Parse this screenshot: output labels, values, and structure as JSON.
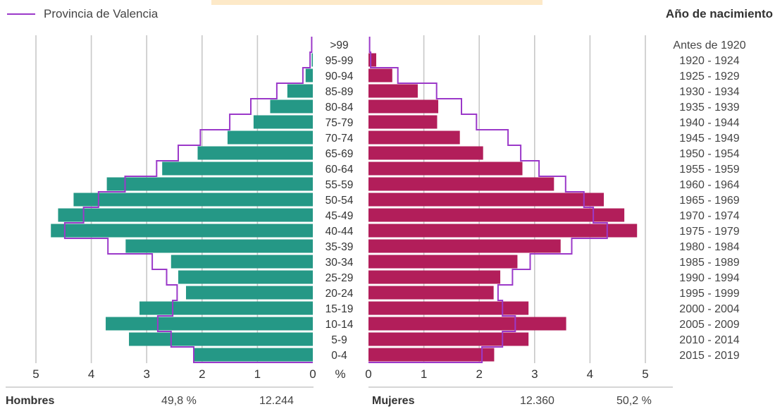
{
  "legend": {
    "label": "Provincia de Valencia",
    "color": "#9b39c9"
  },
  "year_axis_title": "Año de nacimiento",
  "summary": {
    "men_label": "Hombres",
    "men_pct": "49,8 %",
    "men_count": "12.244",
    "women_label": "Mujeres",
    "women_count": "12.360",
    "women_pct": "50,2 %"
  },
  "colors": {
    "men": "#259886",
    "women": "#b21e5a",
    "outline": "#9b39c9",
    "grid": "#c8c8c8"
  },
  "chart_data": {
    "type": "bar",
    "orientation": "horizontal-pyramid",
    "unit": "%",
    "xlim": [
      0,
      5
    ],
    "x_ticks_left": [
      "5",
      "4",
      "3",
      "2",
      "1",
      "0"
    ],
    "x_ticks_right": [
      "0",
      "1",
      "2",
      "3",
      "4",
      "5"
    ],
    "unit_label": "%",
    "categories": [
      ">99",
      "95-99",
      "90-94",
      "85-89",
      "80-84",
      "75-79",
      "70-74",
      "65-69",
      "60-64",
      "55-59",
      "50-54",
      "45-49",
      "40-44",
      "35-39",
      "30-34",
      "25-29",
      "20-24",
      "15-19",
      "10-14",
      "5-9",
      "0-4"
    ],
    "birth_years": [
      "Antes de 1920",
      "1920 - 1924",
      "1925 - 1929",
      "1930 - 1934",
      "1935 - 1939",
      "1940 - 1944",
      "1945 - 1949",
      "1950 - 1954",
      "1955 - 1959",
      "1960 - 1964",
      "1965 - 1969",
      "1970 - 1974",
      "1975 - 1979",
      "1980 - 1984",
      "1985 - 1989",
      "1990 - 1994",
      "1995 - 1999",
      "2000 - 2004",
      "2005 - 2009",
      "2010 - 2014",
      "2015 - 2019"
    ],
    "series": [
      {
        "name": "Hombres",
        "values": [
          0.0,
          0.02,
          0.13,
          0.46,
          0.77,
          1.07,
          1.54,
          2.08,
          2.72,
          3.72,
          4.32,
          4.6,
          4.73,
          3.38,
          2.56,
          2.43,
          2.29,
          3.13,
          3.74,
          3.32,
          2.15
        ]
      },
      {
        "name": "Mujeres",
        "values": [
          0.0,
          0.14,
          0.43,
          0.89,
          1.26,
          1.24,
          1.65,
          2.07,
          2.78,
          3.35,
          4.25,
          4.62,
          4.85,
          3.47,
          2.69,
          2.38,
          2.26,
          2.89,
          3.57,
          2.89,
          2.27
        ]
      },
      {
        "name": "Provincia de Valencia",
        "men": [
          0.02,
          0.05,
          0.18,
          0.65,
          1.12,
          1.5,
          2.03,
          2.43,
          2.82,
          3.39,
          3.87,
          4.14,
          4.48,
          3.7,
          2.9,
          2.64,
          2.45,
          2.53,
          2.8,
          2.56,
          2.15
        ],
        "women": [
          0.02,
          0.04,
          0.53,
          1.23,
          1.68,
          1.95,
          2.52,
          2.75,
          3.08,
          3.56,
          3.89,
          4.06,
          4.31,
          3.67,
          2.92,
          2.6,
          2.34,
          2.42,
          2.65,
          2.42,
          2.05
        ]
      }
    ]
  }
}
